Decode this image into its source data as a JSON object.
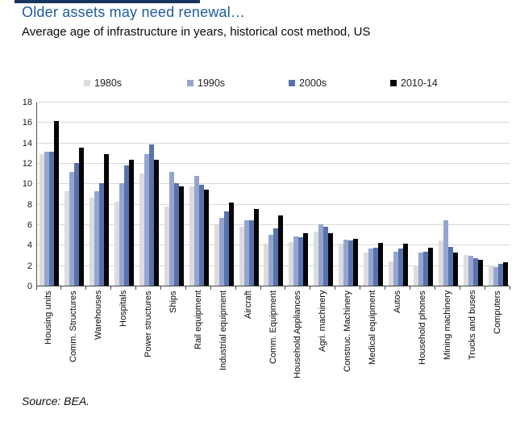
{
  "header": {
    "title": "Older assets may need renewal…",
    "subtitle": "Average age of infrastructure in years, historical cost method, US"
  },
  "source_label": "Source:  BEA.",
  "colors": {
    "title_text": "#1d5c9e",
    "top_strip": "#17365d",
    "gridline": "#d9d9d9",
    "axis": "#444444"
  },
  "chart_data": {
    "type": "bar",
    "title": "Older assets may need renewal…",
    "subtitle": "Average age of infrastructure in years, historical cost method, US",
    "ylabel": "",
    "xlabel": "",
    "ylim": [
      0,
      18
    ],
    "ytick_step": 2,
    "grid": true,
    "legend_position": "top",
    "categories": [
      "Housing units",
      "Comm. Structures",
      "Warehouses",
      "Hospitals",
      "Power structures",
      "Ships",
      "Rail equipment",
      "Industrial equipment",
      "Aircraft",
      "Comm. Equipment",
      "Household Appliances",
      "Agri. machinery",
      "Construc. Machinery",
      "Medical equipment",
      "Autos",
      "Household phones",
      "Mining machinery",
      "Trucks and buses",
      "Computers"
    ],
    "series": [
      {
        "name": "1980s",
        "color": "#dcdcdc",
        "values": [
          12.9,
          9.2,
          8.6,
          8.2,
          11.0,
          7.7,
          9.7,
          5.9,
          5.8,
          4.1,
          4.3,
          5.3,
          4.1,
          3.2,
          2.4,
          2.0,
          4.4,
          3.0,
          1.9
        ]
      },
      {
        "name": "1990s",
        "color": "#95a5d0",
        "values": [
          13.1,
          11.1,
          9.2,
          10.0,
          12.9,
          11.1,
          10.7,
          6.6,
          6.4,
          5.0,
          4.8,
          6.0,
          4.5,
          3.6,
          3.3,
          3.2,
          6.4,
          2.9,
          1.8
        ]
      },
      {
        "name": "2000s",
        "color": "#5872ab",
        "values": [
          13.1,
          12.0,
          10.0,
          11.8,
          13.8,
          10.0,
          9.9,
          7.3,
          6.4,
          5.6,
          4.7,
          5.8,
          4.4,
          3.7,
          3.6,
          3.3,
          3.8,
          2.7,
          2.1
        ]
      },
      {
        "name": "2010-14",
        "color": "#050505",
        "values": [
          16.1,
          13.5,
          12.9,
          12.3,
          12.3,
          9.7,
          9.4,
          8.1,
          7.5,
          6.9,
          5.1,
          5.1,
          4.6,
          4.2,
          4.1,
          3.7,
          3.2,
          2.5,
          2.3
        ]
      }
    ]
  }
}
